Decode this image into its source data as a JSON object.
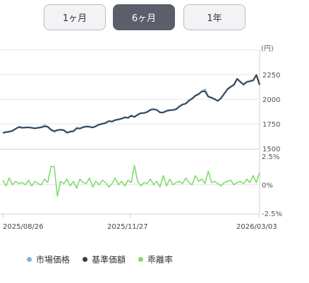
{
  "tabs": [
    {
      "label": "1ヶ月",
      "active": false
    },
    {
      "label": "6ヶ月",
      "active": true
    },
    {
      "label": "1年",
      "active": false
    }
  ],
  "chart_data": [
    {
      "type": "line",
      "unit_label": "(円)",
      "ylim": [
        1500,
        2350
      ],
      "yticks": [
        "2250",
        "2000",
        "1750",
        "1500"
      ],
      "x_start": "2025/08/26",
      "x_end": "2026/03/03",
      "series": [
        {
          "name": "市場価格",
          "color": "#7ab3e0",
          "values": [
            1660,
            1668,
            1672,
            1680,
            1700,
            1720,
            1712,
            1715,
            1714,
            1711,
            1706,
            1712,
            1716,
            1735,
            1722,
            1688,
            1669,
            1685,
            1692,
            1688,
            1660,
            1673,
            1676,
            1709,
            1705,
            1718,
            1725,
            1723,
            1715,
            1728,
            1745,
            1752,
            1760,
            1780,
            1776,
            1790,
            1796,
            1804,
            1818,
            1812,
            1835,
            1822,
            1845,
            1860,
            1862,
            1874,
            1895,
            1900,
            1892,
            1868,
            1868,
            1884,
            1890,
            1892,
            1900,
            1930,
            1948,
            1958,
            1990,
            2010,
            2040,
            2055,
            2082,
            2098,
            2030,
            2018,
            2002,
            1985,
            2015,
            2060,
            2105,
            2130,
            2150,
            2208,
            2180,
            2150,
            2178,
            2185,
            2195,
            2248,
            2150
          ]
        },
        {
          "name": "基準価額",
          "color": "#3a3d44",
          "values": [
            1660,
            1665,
            1670,
            1680,
            1700,
            1718,
            1710,
            1712,
            1715,
            1710,
            1705,
            1710,
            1715,
            1725,
            1720,
            1692,
            1678,
            1688,
            1690,
            1685,
            1662,
            1670,
            1675,
            1705,
            1702,
            1715,
            1722,
            1720,
            1712,
            1725,
            1742,
            1750,
            1758,
            1778,
            1772,
            1788,
            1795,
            1802,
            1815,
            1810,
            1832,
            1820,
            1842,
            1858,
            1860,
            1870,
            1892,
            1898,
            1890,
            1865,
            1866,
            1880,
            1888,
            1890,
            1898,
            1925,
            1945,
            1955,
            1985,
            2005,
            2035,
            2050,
            2078,
            2080,
            2025,
            2015,
            2000,
            1982,
            2010,
            2055,
            2100,
            2125,
            2145,
            2205,
            2175,
            2148,
            2175,
            2182,
            2190,
            2245,
            2145
          ]
        }
      ]
    },
    {
      "type": "line",
      "ylim": [
        -2.5,
        2.5
      ],
      "yticks": [
        "2.5%",
        "0%",
        "-2.5%"
      ],
      "x_ticks": [
        "2025/08/26",
        "2025/11/27",
        "2026/03/03"
      ],
      "series": [
        {
          "name": "乖離率",
          "color": "#7fdc6f",
          "values": [
            0.4,
            -0.1,
            0.6,
            0,
            0.3,
            0.1,
            0.2,
            0,
            0.4,
            -0.1,
            0.3,
            0.1,
            0,
            0.5,
            0.2,
            1.6,
            1.6,
            -1.0,
            0.3,
            0.1,
            0.5,
            -0.1,
            0.3,
            -0.3,
            0.5,
            0.2,
            0.1,
            0.6,
            -0.2,
            0.3,
            0,
            0.4,
            0.2,
            -0.2,
            0.1,
            0.6,
            0,
            0.3,
            -0.1,
            0.4,
            0.2,
            1.7,
            0.3,
            -0.1,
            0.2,
            0.1,
            0.5,
            0,
            0.3,
            -0.2,
            0.8,
            -0.1,
            0.5,
            0,
            0.2,
            0.3,
            0.1,
            0.6,
            0.2,
            0,
            0.8,
            0.3,
            0.5,
            0.1,
            1.2,
            0.2,
            0.3,
            0.1,
            -0.1,
            0.2,
            0.3,
            0.4,
            0,
            0.2,
            0.3,
            0.1,
            0.5,
            0.2,
            0.8,
            0.2,
            1.1
          ]
        }
      ]
    }
  ],
  "legend": [
    {
      "label": "市場価格",
      "color": "#7ab3e0"
    },
    {
      "label": "基準価額",
      "color": "#3a3d44"
    },
    {
      "label": "乖離率",
      "color": "#7fdc6f"
    }
  ]
}
